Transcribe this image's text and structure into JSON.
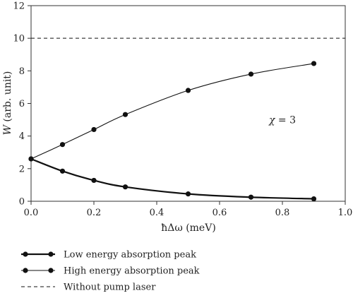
{
  "chart_data": {
    "type": "line",
    "xlabel": "ħΔω (meV)",
    "ylabel_var": "W",
    "ylabel_rest": " (arb. unit)",
    "xlim": [
      0.0,
      1.0
    ],
    "ylim": [
      0,
      12
    ],
    "x_ticks": [
      "0.0",
      "0.2",
      "0.4",
      "0.6",
      "0.8",
      "1.0"
    ],
    "y_ticks": [
      "0",
      "2",
      "4",
      "6",
      "8",
      "10",
      "12"
    ],
    "grid": false,
    "legend_position": "bottom",
    "annotation": {
      "prefix": "χ",
      "suffix": " = 3",
      "x": 0.8,
      "y": 5.0
    },
    "series": [
      {
        "name": "Low energy absorption peak",
        "style": "solid-thick-markers",
        "x": [
          0.0,
          0.1,
          0.2,
          0.3,
          0.5,
          0.7,
          0.9
        ],
        "y": [
          2.6,
          1.85,
          1.28,
          0.88,
          0.45,
          0.25,
          0.15
        ]
      },
      {
        "name": "High energy absorption peak",
        "style": "solid-thin-markers",
        "x": [
          0.0,
          0.1,
          0.2,
          0.3,
          0.5,
          0.7,
          0.9
        ],
        "y": [
          2.6,
          3.48,
          4.4,
          5.32,
          6.8,
          7.8,
          8.45
        ]
      },
      {
        "name": "Without pump laser",
        "style": "dashed",
        "x": [
          0.0,
          1.0
        ],
        "y": [
          10.0,
          10.0
        ]
      }
    ],
    "colors": {
      "line": "#111111",
      "axis": "#333333"
    }
  }
}
